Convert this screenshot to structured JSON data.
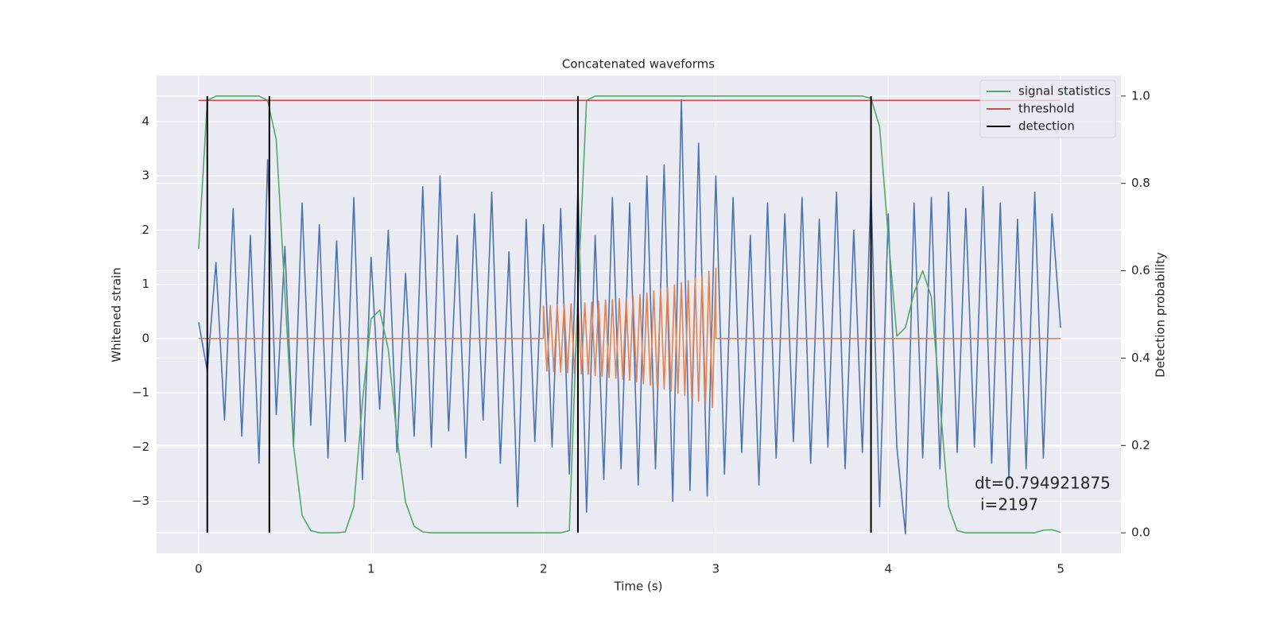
{
  "chart_data": {
    "type": "line",
    "title": "Concatenated waveforms",
    "xlabel": "Time (s)",
    "ylabel": "Whitened strain",
    "y2label": "Detection probability",
    "x": [
      0,
      0.05,
      0.1,
      0.15,
      0.2,
      0.25,
      0.3,
      0.35,
      0.4,
      0.45,
      0.5,
      0.55,
      0.6,
      0.65,
      0.7,
      0.75,
      0.8,
      0.85,
      0.9,
      0.95,
      1,
      1.05,
      1.1,
      1.15,
      1.2,
      1.25,
      1.3,
      1.35,
      1.4,
      1.45,
      1.5,
      1.55,
      1.6,
      1.65,
      1.7,
      1.75,
      1.8,
      1.85,
      1.9,
      1.95,
      2,
      2.05,
      2.1,
      2.15,
      2.2,
      2.25,
      2.3,
      2.35,
      2.4,
      2.45,
      2.5,
      2.55,
      2.6,
      2.65,
      2.7,
      2.75,
      2.8,
      2.85,
      2.9,
      2.95,
      3,
      3.05,
      3.1,
      3.15,
      3.2,
      3.25,
      3.3,
      3.35,
      3.4,
      3.45,
      3.5,
      3.55,
      3.6,
      3.65,
      3.7,
      3.75,
      3.8,
      3.85,
      3.9,
      3.95,
      4,
      4.05,
      4.1,
      4.15,
      4.2,
      4.25,
      4.3,
      4.35,
      4.4,
      4.45,
      4.5,
      4.55,
      4.6,
      4.65,
      4.7,
      4.75,
      4.8,
      4.85,
      4.9,
      4.95,
      5
    ],
    "xlim": [
      -0.244,
      5.35
    ],
    "ylim": [
      -3.96,
      4.85
    ],
    "y2lim": [
      -0.047,
      1.047
    ],
    "xticks": [
      0,
      1,
      2,
      3,
      4,
      5
    ],
    "yticks": [
      {
        "value": -3,
        "label": "−3"
      },
      {
        "value": -2,
        "label": "−2"
      },
      {
        "value": -1,
        "label": "−1"
      },
      0,
      1,
      2,
      3,
      4
    ],
    "y2ticks": [
      {
        "value": 0,
        "label": "0.0"
      },
      0.2,
      0.4,
      0.6,
      0.8,
      {
        "value": 1,
        "label": "1.0"
      }
    ],
    "grid": true,
    "legend": "upper right",
    "series": [
      {
        "color": "#4c72b0",
        "values": [
          0.3,
          -0.6,
          1.4,
          -1.5,
          2.4,
          -1.8,
          1.9,
          -2.3,
          3.3,
          -1.4,
          1.7,
          -2.0,
          2.5,
          -1.6,
          2.1,
          -2.2,
          1.8,
          -1.9,
          2.6,
          -2.6,
          1.5,
          -1.3,
          2.0,
          -2.1,
          1.2,
          -1.8,
          2.8,
          -2.0,
          3.0,
          -1.7,
          1.9,
          -2.2,
          2.3,
          -1.5,
          2.7,
          -2.3,
          1.6,
          -3.1,
          2.2,
          -1.9,
          2.1,
          -2.0,
          2.4,
          -2.5,
          2.8,
          -3.2,
          1.9,
          -2.6,
          2.6,
          -2.4,
          2.5,
          -2.7,
          3.0,
          -2.4,
          3.2,
          -3.0,
          4.4,
          -2.8,
          3.6,
          -2.9,
          3.0,
          -2.5,
          2.6,
          -2.1,
          1.9,
          -2.7,
          2.5,
          -2.2,
          2.3,
          -1.9,
          2.6,
          -2.3,
          2.2,
          -2.0,
          2.7,
          -2.4,
          2.0,
          -2.1,
          2.8,
          -3.1,
          2.3,
          -2.0,
          -3.6,
          2.5,
          -2.2,
          2.6,
          -2.4,
          2.7,
          -2.1,
          2.4,
          -2.0,
          2.8,
          -2.3,
          2.5,
          -2.6,
          2.2,
          -2.4,
          2.7,
          -2.2,
          2.3,
          0.2
        ]
      },
      {
        "color": "#dd8452",
        "x": [
          0,
          2,
          2,
          2.02,
          2.04,
          2.06,
          2.08,
          2.1,
          2.12,
          2.14,
          2.16,
          2.18,
          2.2,
          2.22,
          2.24,
          2.26,
          2.28,
          2.3,
          2.32,
          2.34,
          2.36,
          2.38,
          2.4,
          2.42,
          2.44,
          2.46,
          2.48,
          2.5,
          2.52,
          2.54,
          2.56,
          2.58,
          2.6,
          2.62,
          2.64,
          2.66,
          2.68,
          2.7,
          2.72,
          2.74,
          2.76,
          2.78,
          2.8,
          2.82,
          2.84,
          2.86,
          2.88,
          2.9,
          2.92,
          2.94,
          2.96,
          2.98,
          3,
          3,
          5
        ],
        "values": [
          0,
          0,
          0.6,
          -0.6,
          0.61,
          -0.61,
          0.62,
          -0.62,
          0.63,
          -0.63,
          0.64,
          -0.64,
          0.65,
          -0.65,
          0.66,
          -0.66,
          0.67,
          -0.68,
          0.69,
          -0.7,
          0.71,
          -0.72,
          0.72,
          -0.73,
          0.74,
          -0.75,
          0.76,
          -0.77,
          0.78,
          -0.8,
          0.81,
          -0.83,
          0.84,
          -0.86,
          0.88,
          -0.9,
          0.92,
          -0.93,
          0.95,
          -0.97,
          0.99,
          -1.01,
          1.03,
          -1.05,
          1.07,
          -1.1,
          1.12,
          -1.15,
          1.18,
          -1.21,
          1.24,
          -1.27,
          1.3,
          0,
          0
        ]
      },
      {
        "name": "signal statistics",
        "color": "#55a868",
        "axis": "y2",
        "values": [
          0.65,
          0.99,
          1,
          1,
          1,
          1,
          1,
          1,
          0.99,
          0.9,
          0.55,
          0.2,
          0.04,
          0.005,
          0,
          0,
          0,
          0.002,
          0.06,
          0.3,
          0.49,
          0.51,
          0.42,
          0.22,
          0.07,
          0.015,
          0.002,
          0,
          0,
          0,
          0,
          0,
          0,
          0,
          0,
          0,
          0,
          0,
          0,
          0,
          0,
          0,
          0,
          0.005,
          0.55,
          0.99,
          1,
          1,
          1,
          1,
          1,
          1,
          1,
          1,
          1,
          1,
          1,
          1,
          1,
          1,
          1,
          1,
          1,
          1,
          1,
          1,
          1,
          1,
          1,
          1,
          1,
          1,
          1,
          1,
          1,
          1,
          1,
          1,
          0.995,
          0.93,
          0.68,
          0.45,
          0.47,
          0.55,
          0.6,
          0.54,
          0.3,
          0.06,
          0.005,
          0,
          0,
          0,
          0,
          0,
          0,
          0,
          0,
          0,
          0.006,
          0.007,
          0.001
        ]
      },
      {
        "name": "threshold",
        "color": "#c44e52",
        "axis": "y2",
        "x": [
          0,
          5
        ],
        "values": [
          0.99,
          0.99
        ]
      },
      {
        "name": "detection",
        "color": "#000000",
        "axis": "y2",
        "type": "vline",
        "x": [
          0.05,
          0.41,
          2.2,
          3.9
        ],
        "ymin": 0,
        "ymax": 1
      }
    ],
    "annotations": [
      "dt=0.794921875",
      "i=2197"
    ]
  }
}
